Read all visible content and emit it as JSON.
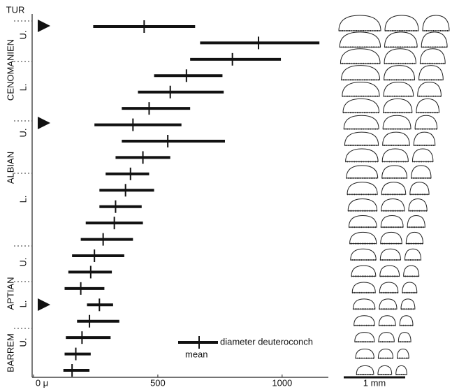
{
  "chart_data": {
    "type": "range",
    "stages": [
      {
        "name": "TUR",
        "sub": []
      },
      {
        "name": "CENOMANIEN",
        "sub": [
          "U.",
          "L."
        ]
      },
      {
        "name": "ALBIAN",
        "sub": [
          "U.",
          "L."
        ]
      },
      {
        "name": "APTIAN",
        "sub": [
          "U.",
          "L."
        ]
      },
      {
        "name": "BARREM",
        "sub": [
          "U."
        ]
      }
    ],
    "series": [
      {
        "name": "diameter deuteroconch",
        "color": "#111111",
        "min": [
          240,
          670,
          630,
          485,
          420,
          355,
          245,
          355,
          330,
          290,
          265,
          265,
          210,
          190,
          155,
          140,
          125,
          215,
          175,
          130,
          125,
          120
        ],
        "max": [
          650,
          1150,
          995,
          760,
          765,
          630,
          595,
          770,
          550,
          465,
          485,
          435,
          440,
          400,
          365,
          315,
          285,
          320,
          345,
          310,
          230,
          225
        ],
        "mean": [
          445,
          905,
          800,
          615,
          550,
          465,
          400,
          540,
          440,
          390,
          370,
          330,
          325,
          280,
          245,
          230,
          190,
          265,
          225,
          195,
          170,
          155
        ]
      }
    ],
    "mean_label": "mean",
    "xlim": [
      0,
      1200
    ],
    "xticks": [
      {
        "value": 0,
        "label": "0 μ"
      },
      500,
      1000
    ],
    "scale_bar_label": "1 mm"
  }
}
